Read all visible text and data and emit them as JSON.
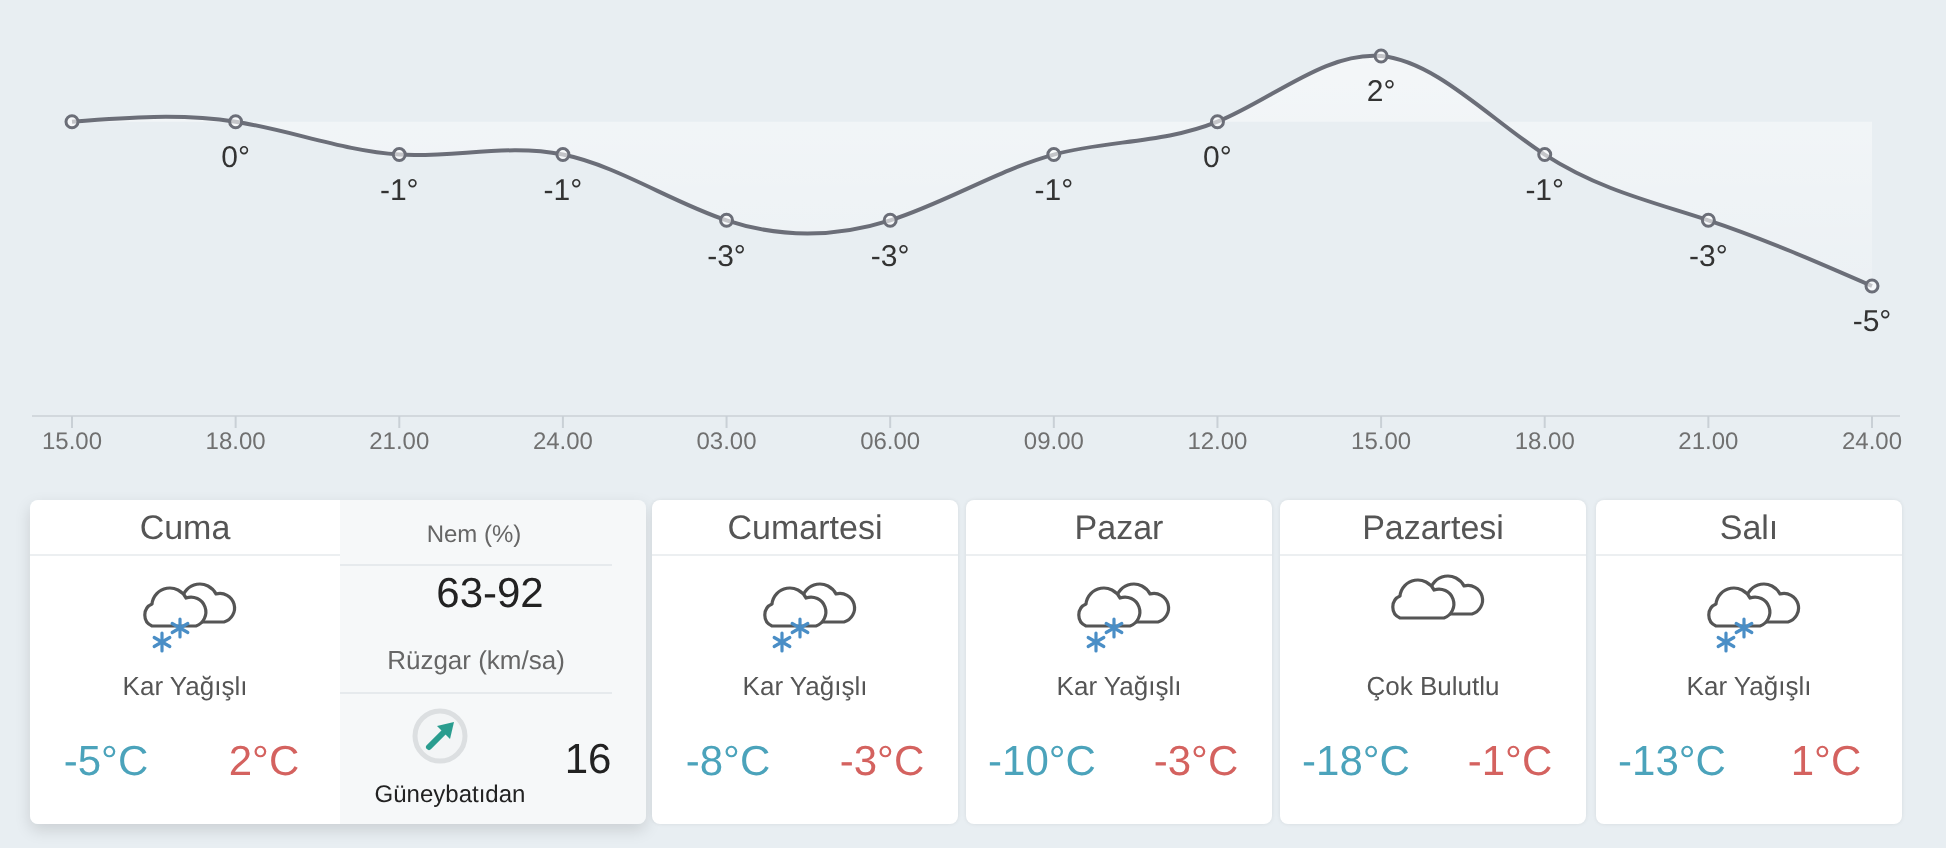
{
  "chart_data": [
    {
      "type": "area",
      "categories": [
        "15.00",
        "18.00",
        "21.00",
        "24.00",
        "03.00",
        "06.00",
        "09.00",
        "12.00",
        "15.00",
        "18.00",
        "21.00",
        "24.00"
      ],
      "values": [
        0,
        0,
        -1,
        -1,
        -3,
        -3,
        -1,
        0,
        2,
        -1,
        -3,
        -5
      ],
      "value_labels": [
        null,
        "0°",
        "-1°",
        "-1°",
        "-3°",
        "-3°",
        "-1°",
        "0°",
        "2°",
        "-1°",
        "-3°",
        "-5°"
      ],
      "color": "#6b6e78",
      "marker": "circle"
    },
    {
      "type": "other",
      "title": "Cuma",
      "subtitle": "Kar Yağışlı",
      "annotations": [
        "-5°C",
        "2°C"
      ],
      "colors": [
        "#4ba3bb",
        "#d4625f"
      ]
    },
    {
      "type": "other",
      "annotations": [
        "Nem (%)",
        "63-92",
        "Rüzgar (km/sa)",
        "Güneybatıdan",
        "16"
      ]
    },
    {
      "type": "other",
      "title": "Cumartesi",
      "subtitle": "Kar Yağışlı",
      "annotations": [
        "-8°C",
        "-3°C"
      ],
      "colors": [
        "#4ba3bb",
        "#d4625f"
      ]
    },
    {
      "type": "other",
      "title": "Pazar",
      "subtitle": "Kar Yağışlı",
      "annotations": [
        "-10°C",
        "-3°C"
      ],
      "colors": [
        "#4ba3bb",
        "#d4625f"
      ]
    },
    {
      "type": "other",
      "title": "Pazartesi",
      "subtitle": "Çok Bulutlu",
      "annotations": [
        "-18°C",
        "-1°C"
      ],
      "colors": [
        "#4ba3bb",
        "#d4625f"
      ]
    },
    {
      "type": "other",
      "title": "Salı",
      "subtitle": "Kar Yağışlı",
      "annotations": [
        "-13°C",
        "1°C"
      ],
      "colors": [
        "#4ba3bb",
        "#d4625f"
      ]
    }
  ]
}
